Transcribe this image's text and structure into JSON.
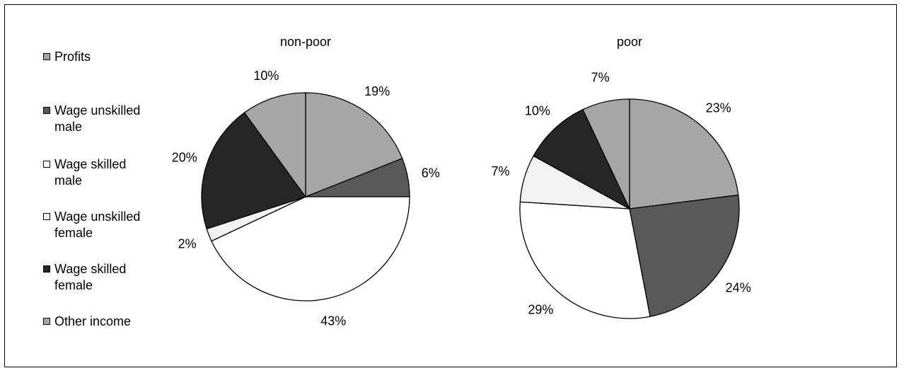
{
  "legend": [
    {
      "label": "Profits",
      "color": "#a6a6a6"
    },
    {
      "label": "Wage unskilled male",
      "color": "#595959"
    },
    {
      "label": "Wage skilled male",
      "color": "#ffffff"
    },
    {
      "label": "Wage unskilled female",
      "color": "#f2f2f2"
    },
    {
      "label": "Wage skilled female",
      "color": "#262626"
    },
    {
      "label": "Other income",
      "color": "#a6a6a6"
    }
  ],
  "chart_data": [
    {
      "type": "pie",
      "title": "non-poor",
      "categories": [
        "Profits",
        "Wage unskilled male",
        "Wage skilled male",
        "Wage unskilled female",
        "Wage skilled female",
        "Other income"
      ],
      "values": [
        19,
        6,
        43,
        2,
        20,
        10
      ],
      "data_labels": [
        "19%",
        "6%",
        "43%",
        "2%",
        "20%",
        "10%"
      ]
    },
    {
      "type": "pie",
      "title": "poor",
      "categories": [
        "Profits",
        "Wage unskilled male",
        "Wage skilled male",
        "Wage unskilled female",
        "Wage skilled female",
        "Other income"
      ],
      "values": [
        23,
        24,
        29,
        7,
        10,
        7
      ],
      "data_labels": [
        "23%",
        "24%",
        "29%",
        "7%",
        "10%",
        "7%"
      ]
    }
  ]
}
